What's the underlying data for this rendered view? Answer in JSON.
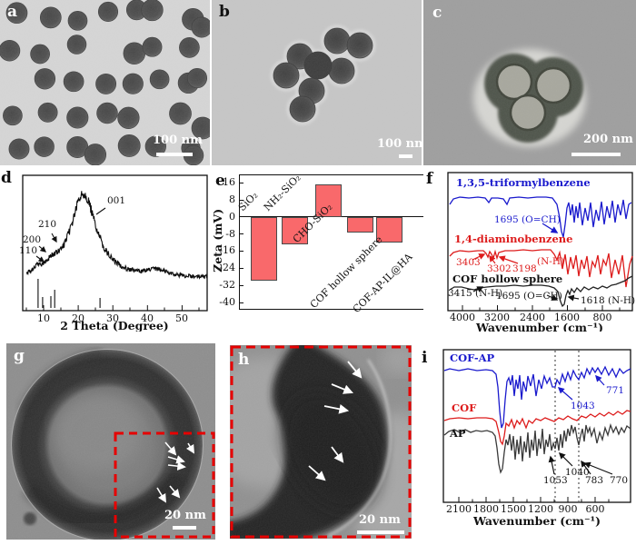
{
  "panels": {
    "a": {
      "label": "a",
      "scalebar": "100 nm"
    },
    "b": {
      "label": "b",
      "scalebar": "100 nm"
    },
    "c": {
      "label": "c",
      "scalebar": "200 nm"
    },
    "d": {
      "label": "d",
      "xlabel": "2 Theta (Degree)",
      "xticks": [
        "10",
        "20",
        "30",
        "40",
        "50"
      ],
      "ann": {
        "p001": "001",
        "p210": "210",
        "p200": "200",
        "p110": "110"
      }
    },
    "e": {
      "label": "e",
      "ylabel": "Zeta (mV)",
      "yticks": [
        "16",
        "8",
        "0",
        "-8",
        "-16",
        "-24",
        "-32",
        "-40"
      ],
      "bar_color": "#F9696B",
      "bars": [
        {
          "name": "SiO₂",
          "value": -30
        },
        {
          "name": "NH₂-SiO₂",
          "value": -13
        },
        {
          "name": "CHO-SiO₂",
          "value": 15
        },
        {
          "name": "COF hollow sphere",
          "value": -7.5
        },
        {
          "name": "COF-AP-IL@HA",
          "value": -12
        }
      ]
    },
    "f": {
      "label": "f",
      "xlabel": "Wavenumber (cm⁻¹)",
      "xticks": [
        "4000",
        "3200",
        "2400",
        "1600",
        "800"
      ],
      "series": {
        "blue": "1,3,5-triformylbenzene",
        "red": "1,4-diaminobenzene",
        "black": "COF hollow sphere"
      },
      "ann": {
        "blue1695": "1695 (O=CH)",
        "r3403": "3403",
        "r3302": "3302",
        "r3198": "3198",
        "rnh": "(N-H)",
        "k3415": "3415 (N-H)",
        "k1695": "1695 (O=CH)",
        "k1618": "1618 (N-H)"
      }
    },
    "g": {
      "label": "g",
      "scalebar": "20 nm"
    },
    "h": {
      "label": "h",
      "scalebar": "20 nm"
    },
    "i": {
      "label": "i",
      "xlabel": "Wavenumber (cm⁻¹)",
      "xticks": [
        "2100",
        "1800",
        "1500",
        "1200",
        "900",
        "600"
      ],
      "series": {
        "blue": "COF-AP",
        "red": "COF",
        "black": "AP"
      },
      "ann": {
        "b1043": "1043",
        "b771": "771",
        "k1053": "1053",
        "k1040": "1040",
        "k783": "783",
        "k770": "770"
      }
    }
  },
  "colors": {
    "blue": "#1A1ACD",
    "red": "#DD1C1C",
    "black": "#222222",
    "dash_red": "#E60000",
    "bar": "#F9696B"
  },
  "chart_data": [
    {
      "panel": "d",
      "type": "line",
      "title": "XRD pattern of COF hollow sphere",
      "xlabel": "2 Theta (Degree)",
      "xrange": [
        5,
        57
      ],
      "xticks": [
        10,
        20,
        30,
        40,
        50
      ],
      "peaks": [
        {
          "label": "110",
          "two_theta": 8.2
        },
        {
          "label": "200",
          "two_theta": 9.7
        },
        {
          "label": "210",
          "two_theta": 12.2
        },
        {
          "label": "001",
          "two_theta": 21.5
        }
      ],
      "simulated_reflections_two_theta": [
        8.4,
        9.7,
        12.1,
        13.2,
        26.3
      ]
    },
    {
      "panel": "e",
      "type": "bar",
      "ylabel": "Zeta (mV)",
      "ylim": [
        -44,
        20
      ],
      "yticks": [
        16,
        8,
        0,
        -8,
        -16,
        -24,
        -32,
        -40
      ],
      "categories": [
        "SiO₂",
        "NH₂-SiO₂",
        "CHO-SiO₂",
        "COF hollow sphere",
        "COF-AP-IL@HA"
      ],
      "values": [
        -30,
        -13,
        15,
        -7.5,
        -12
      ]
    },
    {
      "panel": "f",
      "type": "line",
      "xlabel": "Wavenumber (cm⁻¹)",
      "x_axis_reversed": true,
      "xticks": [
        4000,
        3200,
        2400,
        1600,
        800
      ],
      "series": [
        {
          "name": "1,3,5-triformylbenzene",
          "color": "#1A1ACD",
          "annotated_peaks_cm1": [
            1695
          ]
        },
        {
          "name": "1,4-diaminobenzene",
          "color": "#DD1C1C",
          "annotated_peaks_cm1": [
            3403,
            3302,
            3198
          ]
        },
        {
          "name": "COF hollow sphere",
          "color": "#222222",
          "annotated_peaks_cm1": [
            3415,
            1695,
            1618
          ]
        }
      ]
    },
    {
      "panel": "i",
      "type": "line",
      "xlabel": "Wavenumber (cm⁻¹)",
      "x_axis_reversed": true,
      "xticks": [
        2100,
        1800,
        1500,
        1200,
        900,
        600
      ],
      "dotted_guides_cm1": [
        1043,
        775
      ],
      "series": [
        {
          "name": "COF-AP",
          "color": "#1A1ACD",
          "annotated_peaks_cm1": [
            1043,
            771
          ]
        },
        {
          "name": "COF",
          "color": "#DD1C1C",
          "annotated_peaks_cm1": []
        },
        {
          "name": "AP",
          "color": "#222222",
          "annotated_peaks_cm1": [
            1053,
            1040,
            783,
            770
          ]
        }
      ]
    }
  ]
}
